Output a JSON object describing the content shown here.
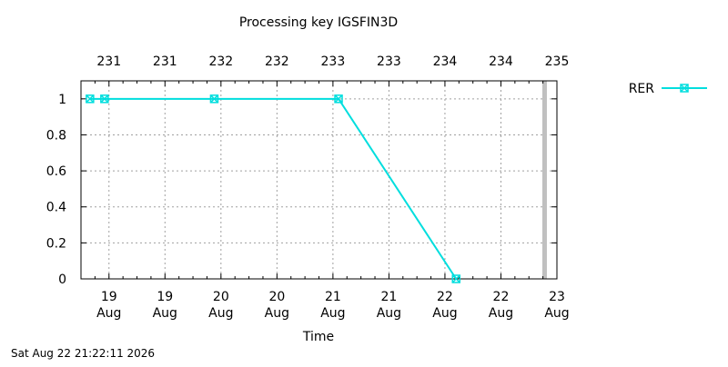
{
  "chart_data": {
    "type": "line",
    "title": "Processing key IGSFIN3D",
    "xlabel": "Time",
    "ylabel": "",
    "ylim": [
      0,
      1.1
    ],
    "xlim": [
      18.75,
      23.0
    ],
    "y_ticks": [
      "0",
      "0.2",
      "0.4",
      "0.6",
      "0.8",
      "1"
    ],
    "y_tick_values": [
      0,
      0.2,
      0.4,
      0.6,
      0.8,
      1.0
    ],
    "x_ticks": [
      {
        "value": 19.0,
        "day": "19",
        "month": "Aug"
      },
      {
        "value": 19.5,
        "day": "19",
        "month": "Aug"
      },
      {
        "value": 20.0,
        "day": "20",
        "month": "Aug"
      },
      {
        "value": 20.5,
        "day": "20",
        "month": "Aug"
      },
      {
        "value": 21.0,
        "day": "21",
        "month": "Aug"
      },
      {
        "value": 21.5,
        "day": "21",
        "month": "Aug"
      },
      {
        "value": 22.0,
        "day": "22",
        "month": "Aug"
      },
      {
        "value": 22.5,
        "day": "22",
        "month": "Aug"
      },
      {
        "value": 23.0,
        "day": "23",
        "month": "Aug"
      }
    ],
    "x2_ticks": [
      {
        "value": 19.0,
        "label": "231"
      },
      {
        "value": 19.5,
        "label": "231"
      },
      {
        "value": 20.0,
        "label": "232"
      },
      {
        "value": 20.5,
        "label": "232"
      },
      {
        "value": 21.0,
        "label": "233"
      },
      {
        "value": 21.5,
        "label": "233"
      },
      {
        "value": 22.0,
        "label": "234"
      },
      {
        "value": 22.5,
        "label": "234"
      },
      {
        "value": 23.0,
        "label": "235"
      }
    ],
    "grid": true,
    "legend_position": "top-right",
    "now_marker_x": 22.89,
    "series": [
      {
        "name": "RER",
        "color": "#00dede",
        "marker": "x-square",
        "points": [
          {
            "x": 18.83,
            "y": 1
          },
          {
            "x": 18.96,
            "y": 1
          },
          {
            "x": 19.94,
            "y": 1
          },
          {
            "x": 21.05,
            "y": 1
          },
          {
            "x": 22.1,
            "y": 0
          }
        ]
      }
    ]
  },
  "footer": {
    "timestamp": "Sat Aug 22 21:22:11 2026"
  },
  "colors": {
    "grid": "#a0a0a0",
    "now_marker": "#c0c0c0",
    "axis": "#000000"
  }
}
